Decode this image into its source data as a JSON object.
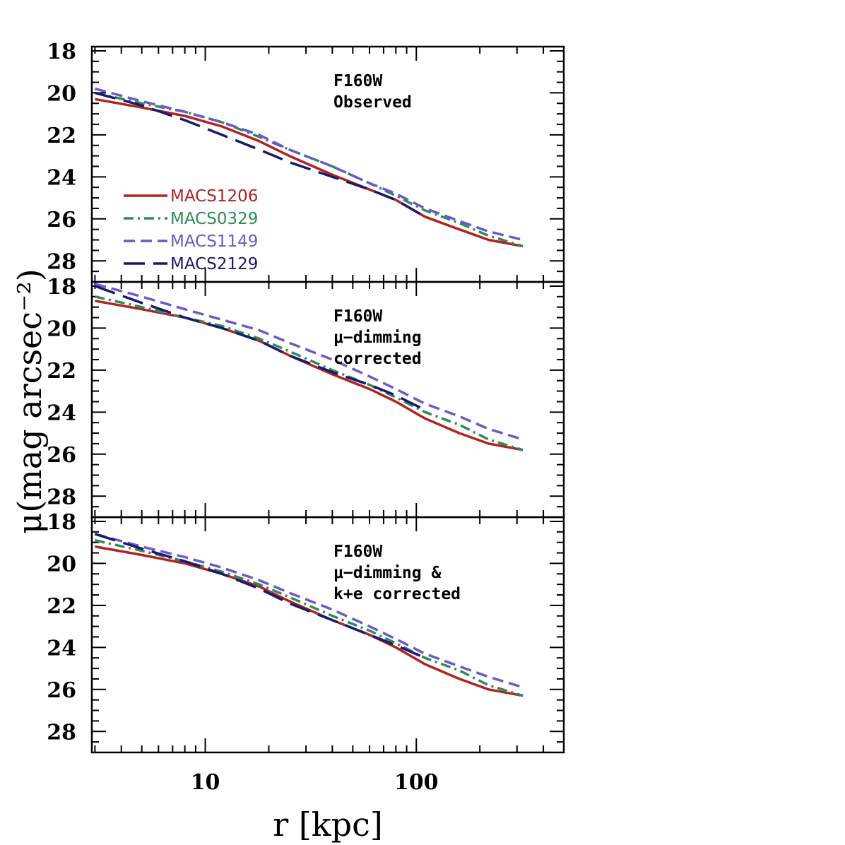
{
  "chart_data": {
    "type": "line",
    "xlabel": "r [kpc]",
    "ylabel": "μ(mag arcsec⁻²)",
    "xscale": "log",
    "xlim": [
      2.9,
      500
    ],
    "ylim": [
      29,
      17.8
    ],
    "x_ticks": [
      10,
      100
    ],
    "y_ticks": [
      18,
      20,
      22,
      24,
      26,
      28
    ],
    "legend": {
      "placement": "lower-left of top panel",
      "entries": [
        "MACS1206",
        "MACS0329",
        "MACS1149",
        "MACS2129"
      ]
    },
    "styles": [
      {
        "name": "MACS1206",
        "color": "#b22222",
        "dash": "solid"
      },
      {
        "name": "MACS0329",
        "color": "#2e8b57",
        "dash": "dash-dot"
      },
      {
        "name": "MACS1149",
        "color": "#6a5acd",
        "dash": "short-dash"
      },
      {
        "name": "MACS2129",
        "color": "#191970",
        "dash": "long-dash"
      }
    ],
    "panels": [
      {
        "label": [
          "F160W",
          "Observed"
        ],
        "series": [
          {
            "name": "MACS1206",
            "x": [
              3,
              5,
              8,
              12,
              18,
              25,
              40,
              60,
              80,
              110,
              160,
              220,
              320
            ],
            "y": [
              20.3,
              20.7,
              21.1,
              21.6,
              22.3,
              23.0,
              23.9,
              24.6,
              25.1,
              25.9,
              26.5,
              27.0,
              27.3
            ]
          },
          {
            "name": "MACS0329",
            "x": [
              3,
              5,
              8,
              12,
              18,
              25,
              40,
              60,
              80,
              110,
              160,
              220,
              320
            ],
            "y": [
              20.0,
              20.5,
              20.9,
              21.4,
              22.1,
              22.7,
              23.5,
              24.3,
              24.9,
              25.6,
              26.2,
              26.8,
              27.3
            ]
          },
          {
            "name": "MACS1149",
            "x": [
              3,
              5,
              8,
              12,
              18,
              25,
              40,
              60,
              80,
              110,
              160,
              220,
              320
            ],
            "y": [
              19.8,
              20.4,
              20.9,
              21.4,
              22.0,
              22.7,
              23.5,
              24.3,
              24.8,
              25.5,
              26.1,
              26.6,
              27.0
            ]
          },
          {
            "name": "MACS2129",
            "x": [
              3,
              5,
              8,
              12,
              18,
              25,
              40,
              60,
              80,
              110
            ],
            "y": [
              20.0,
              20.6,
              21.3,
              22.0,
              22.7,
              23.3,
              24.0,
              24.6,
              25.1,
              25.9
            ]
          }
        ]
      },
      {
        "label": [
          "F160W",
          "μ−dimming",
          "corrected"
        ],
        "series": [
          {
            "name": "MACS1206",
            "x": [
              3,
              5,
              8,
              12,
              18,
              25,
              40,
              60,
              80,
              110,
              160,
              220,
              320
            ],
            "y": [
              18.7,
              19.1,
              19.5,
              20.0,
              20.6,
              21.3,
              22.2,
              22.9,
              23.5,
              24.3,
              25.0,
              25.5,
              25.8
            ]
          },
          {
            "name": "MACS0329",
            "x": [
              3,
              5,
              8,
              12,
              18,
              25,
              40,
              60,
              80,
              110,
              160,
              220,
              320
            ],
            "y": [
              18.5,
              19.0,
              19.5,
              19.9,
              20.5,
              21.1,
              22.0,
              22.7,
              23.3,
              24.0,
              24.6,
              25.3,
              25.8
            ]
          },
          {
            "name": "MACS1149",
            "x": [
              3,
              5,
              8,
              12,
              18,
              25,
              40,
              60,
              80,
              110,
              160,
              220,
              320
            ],
            "y": [
              17.9,
              18.5,
              19.1,
              19.6,
              20.1,
              20.7,
              21.5,
              22.3,
              22.9,
              23.6,
              24.2,
              24.8,
              25.3
            ]
          },
          {
            "name": "MACS2129",
            "x": [
              3,
              5,
              8,
              12,
              18,
              25,
              40,
              60,
              80,
              110
            ],
            "y": [
              18.0,
              18.8,
              19.5,
              20.0,
              20.6,
              21.3,
              22.1,
              22.7,
              23.2,
              23.9
            ]
          }
        ]
      },
      {
        "label": [
          "F160W",
          "μ−dimming &",
          "k+e corrected"
        ],
        "series": [
          {
            "name": "MACS1206",
            "x": [
              3,
              5,
              8,
              12,
              18,
              25,
              40,
              60,
              80,
              110,
              160,
              220,
              320
            ],
            "y": [
              19.2,
              19.6,
              20.0,
              20.5,
              21.1,
              21.8,
              22.7,
              23.4,
              24.0,
              24.8,
              25.5,
              26.0,
              26.3
            ]
          },
          {
            "name": "MACS0329",
            "x": [
              3,
              5,
              8,
              12,
              18,
              25,
              40,
              60,
              80,
              110,
              160,
              220,
              320
            ],
            "y": [
              18.9,
              19.4,
              19.9,
              20.4,
              21.0,
              21.6,
              22.5,
              23.2,
              23.8,
              24.5,
              25.1,
              25.8,
              26.3
            ]
          },
          {
            "name": "MACS1149",
            "x": [
              3,
              5,
              8,
              12,
              18,
              25,
              40,
              60,
              80,
              110,
              160,
              220,
              320
            ],
            "y": [
              18.6,
              19.2,
              19.7,
              20.2,
              20.8,
              21.4,
              22.2,
              23.0,
              23.6,
              24.3,
              24.9,
              25.4,
              25.9
            ]
          },
          {
            "name": "MACS2129",
            "x": [
              3,
              5,
              8,
              12,
              18,
              25,
              40,
              60,
              80,
              110
            ],
            "y": [
              18.6,
              19.3,
              19.9,
              20.5,
              21.2,
              21.9,
              22.7,
              23.4,
              23.9,
              24.5
            ]
          }
        ]
      }
    ]
  }
}
